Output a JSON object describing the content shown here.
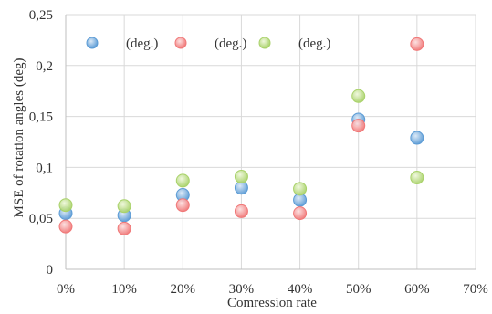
{
  "chart_data": {
    "type": "scatter",
    "xlabel": "Comression rate",
    "ylabel": "MSE of rotation angles (deg)",
    "xlim": [
      0,
      0.7
    ],
    "ylim": [
      0,
      0.25
    ],
    "x_ticks": [
      "0%",
      "10%",
      "20%",
      "30%",
      "40%",
      "50%",
      "60%",
      "70%"
    ],
    "y_ticks": [
      "0",
      "0,05",
      "0,1",
      "0,15",
      "0,2",
      "0,25"
    ],
    "grid": true,
    "legend_position": "top-left",
    "series": [
      {
        "name": "(deg.)",
        "color": "#5b9bd5",
        "x": [
          0.0,
          0.1,
          0.2,
          0.3,
          0.4,
          0.5,
          0.6
        ],
        "y": [
          0.055,
          0.053,
          0.073,
          0.08,
          0.068,
          0.147,
          0.129
        ]
      },
      {
        "name": "(deg.)",
        "color": "#f07878",
        "x": [
          0.0,
          0.1,
          0.2,
          0.3,
          0.4,
          0.5,
          0.6
        ],
        "y": [
          0.042,
          0.04,
          0.063,
          0.057,
          0.055,
          0.141,
          0.221
        ]
      },
      {
        "name": "(deg.)",
        "color": "#a9d26a",
        "x": [
          0.0,
          0.1,
          0.2,
          0.3,
          0.4,
          0.5,
          0.6
        ],
        "y": [
          0.063,
          0.062,
          0.087,
          0.091,
          0.079,
          0.17,
          0.09
        ]
      }
    ]
  }
}
